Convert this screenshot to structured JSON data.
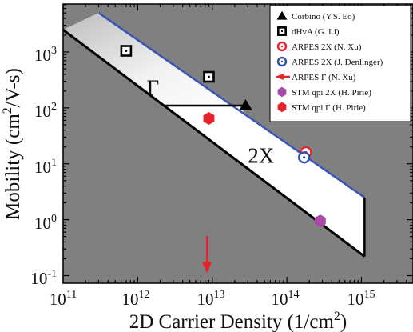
{
  "chart_data": {
    "type": "scatter",
    "xlabel": "2D Carrier Density (1/cm",
    "xlabel_sup": "2",
    "xlabel_close": ")",
    "ylabel": "Mobility (cm",
    "ylabel_sup": "2",
    "ylabel_close": "/V-s)",
    "xscale": "log",
    "yscale": "log",
    "xlim": [
      100000000000.0,
      5000000000000000.0
    ],
    "ylim": [
      0.1,
      5000
    ],
    "x_ticks": [
      {
        "value": 100000000000.0,
        "base": "10",
        "exp": "11"
      },
      {
        "value": 1000000000000.0,
        "base": "10",
        "exp": "12"
      },
      {
        "value": 10000000000000.0,
        "base": "10",
        "exp": "13"
      },
      {
        "value": 100000000000000.0,
        "base": "10",
        "exp": "14"
      },
      {
        "value": 1000000000000000.0,
        "base": "10",
        "exp": "15"
      }
    ],
    "y_ticks": [
      {
        "value": 0.1,
        "base": "10",
        "exp": "-1"
      },
      {
        "value": 1,
        "base": "10",
        "exp": "0"
      },
      {
        "value": 10,
        "base": "10",
        "exp": "1"
      },
      {
        "value": 100,
        "base": "10",
        "exp": "2"
      },
      {
        "value": 1000,
        "base": "10",
        "exp": "3"
      }
    ],
    "region_labels": [
      {
        "text": "Γ",
        "x": 1600000000000.0,
        "y": 230
      },
      {
        "text": "2X",
        "x": 45000000000000.0,
        "y": 14
      }
    ],
    "bounds": {
      "black_line": [
        [
          100000000000.0,
          2500
        ],
        [
          1100000000000000.0,
          0.22
        ]
      ],
      "blue_line": [
        [
          300000000000.0,
          5000
        ],
        [
          1100000000000000.0,
          2.5
        ]
      ],
      "gamma_floor": [
        [
          2200000000000.0,
          110
        ],
        [
          26000000000000.0,
          110
        ]
      ],
      "vertical_cap": [
        [
          1100000000000000.0,
          0.22
        ],
        [
          1100000000000000.0,
          2.5
        ]
      ]
    },
    "colors": {
      "gray_region": "#808080",
      "frame": "#000000",
      "blue_line": "#3a55b4",
      "arpes_red": "#e8232b",
      "arpes_blue": "#2f4fa6",
      "stm_2x": "#a64ca6",
      "stm_gamma": "#e8232b"
    },
    "series": [
      {
        "name": "Corbino (Y.S. Eo)",
        "marker": "filled-triangle",
        "color": "#000000",
        "points": [
          [
            28000000000000.0,
            110
          ]
        ]
      },
      {
        "name": "dHvA  (G. Li)",
        "marker": "open-square-dot",
        "color": "#000000",
        "points": [
          [
            700000000000.0,
            1050
          ],
          [
            9000000000000.0,
            360
          ]
        ]
      },
      {
        "name": "ARPES 2X (N. Xu)",
        "marker": "open-circle-dot",
        "color": "#e8232b",
        "points": [
          [
            180000000000000.0,
            16
          ]
        ]
      },
      {
        "name": "ARPES 2X (J. Denlinger)",
        "marker": "open-circle-dot",
        "color": "#2f4fa6",
        "points": [
          [
            170000000000000.0,
            13
          ]
        ]
      },
      {
        "name": "ARPES Γ (N. Xu)",
        "marker": "arrow-down",
        "color": "#e8232b",
        "points": [
          [
            8500000000000.0,
            0.12
          ]
        ]
      },
      {
        "name": "STM qpi 2X (H. Pirie)",
        "marker": "filled-hexagon",
        "color": "#a64ca6",
        "points": [
          [
            280000000000000.0,
            0.95
          ]
        ]
      },
      {
        "name": "STM qpi Γ (H. Pirie)",
        "marker": "filled-hexagon",
        "color": "#e8232b",
        "points": [
          [
            9000000000000.0,
            65
          ]
        ]
      }
    ]
  }
}
